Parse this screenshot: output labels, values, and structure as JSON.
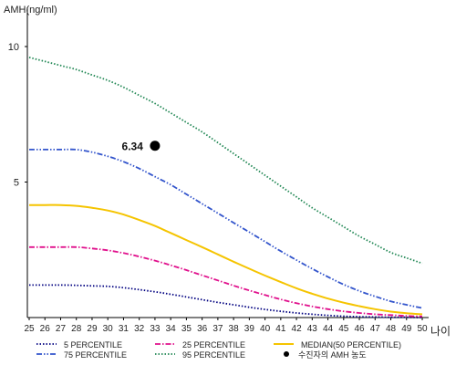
{
  "chart_data": {
    "type": "line",
    "ylabel": "AMH(ng/ml)",
    "xlabel": "나이",
    "ylim": [
      0,
      11
    ],
    "yticks": [
      5,
      10
    ],
    "x": [
      25,
      26,
      27,
      28,
      29,
      30,
      31,
      32,
      33,
      34,
      35,
      36,
      37,
      38,
      39,
      40,
      41,
      42,
      43,
      44,
      45,
      46,
      47,
      48,
      49,
      50
    ],
    "grid": false,
    "series": [
      {
        "name": "5 PERCENTILE",
        "color": "#000080",
        "style": "dotted",
        "values": [
          1.2,
          1.2,
          1.2,
          1.19,
          1.17,
          1.15,
          1.1,
          1.03,
          0.95,
          0.86,
          0.76,
          0.66,
          0.56,
          0.47,
          0.38,
          0.3,
          0.23,
          0.17,
          0.12,
          0.08,
          0.05,
          0.03,
          0.02,
          0.01,
          0.01,
          0.0
        ]
      },
      {
        "name": "75 PERCENTILE",
        "color": "#3355cc",
        "style": "dashdotdot",
        "values": [
          6.2,
          6.2,
          6.2,
          6.2,
          6.1,
          5.95,
          5.75,
          5.5,
          5.2,
          4.9,
          4.55,
          4.2,
          3.85,
          3.5,
          3.15,
          2.8,
          2.45,
          2.12,
          1.8,
          1.5,
          1.22,
          0.98,
          0.78,
          0.6,
          0.47,
          0.35
        ]
      },
      {
        "name": "25 PERCENTILE",
        "color": "#e0108c",
        "style": "dashdot",
        "values": [
          2.6,
          2.6,
          2.6,
          2.6,
          2.55,
          2.48,
          2.38,
          2.25,
          2.1,
          1.93,
          1.75,
          1.56,
          1.37,
          1.18,
          1.0,
          0.83,
          0.67,
          0.53,
          0.41,
          0.31,
          0.23,
          0.17,
          0.12,
          0.09,
          0.06,
          0.04
        ]
      },
      {
        "name": "95 PERCENTILE",
        "color": "#228855",
        "style": "dotted",
        "values": [
          9.6,
          9.45,
          9.3,
          9.15,
          8.95,
          8.75,
          8.5,
          8.2,
          7.9,
          7.55,
          7.2,
          6.85,
          6.45,
          6.05,
          5.65,
          5.25,
          4.85,
          4.45,
          4.05,
          3.7,
          3.35,
          3.0,
          2.7,
          2.4,
          2.2,
          2.0
        ]
      },
      {
        "name": "MEDIAN(50 PERCENTILE)",
        "color": "#f5c400",
        "style": "solid",
        "values": [
          4.15,
          4.15,
          4.15,
          4.12,
          4.05,
          3.95,
          3.8,
          3.6,
          3.38,
          3.12,
          2.86,
          2.6,
          2.33,
          2.06,
          1.8,
          1.55,
          1.31,
          1.08,
          0.88,
          0.7,
          0.55,
          0.42,
          0.31,
          0.22,
          0.16,
          0.12
        ]
      }
    ],
    "points": [
      {
        "name": "수진자의 AMH 농도",
        "x": 33,
        "y": 6.34,
        "label": "6.34",
        "color": "#000000"
      }
    ],
    "legend_placement": "bottom",
    "legend_order": [
      0,
      2,
      4,
      1,
      3,
      "point"
    ]
  }
}
